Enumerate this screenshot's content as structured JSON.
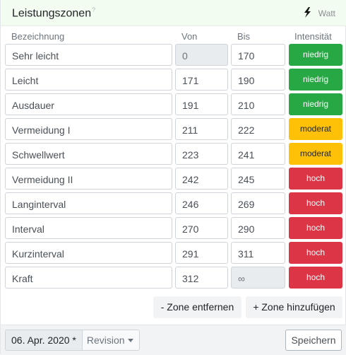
{
  "header": {
    "title": "Leistungszonen",
    "help_mark": "?",
    "unit_icon": "lightning-bolt-icon",
    "unit_label": "Watt"
  },
  "columns": {
    "name": "Bezeichnung",
    "from": "Von",
    "to": "Bis",
    "intensity": "Intensität"
  },
  "colors": {
    "low": "#28a745",
    "moderate": "#ffc107",
    "high": "#dc3545"
  },
  "zones": [
    {
      "name": "Sehr leicht",
      "from": "0",
      "to": "170",
      "intensity": "niedrig",
      "level": "low"
    },
    {
      "name": "Leicht",
      "from": "171",
      "to": "190",
      "intensity": "niedrig",
      "level": "low"
    },
    {
      "name": "Ausdauer",
      "from": "191",
      "to": "210",
      "intensity": "niedrig",
      "level": "low"
    },
    {
      "name": "Vermeidung I",
      "from": "211",
      "to": "222",
      "intensity": "moderat",
      "level": "mid"
    },
    {
      "name": "Schwellwert",
      "from": "223",
      "to": "241",
      "intensity": "moderat",
      "level": "mid"
    },
    {
      "name": "Vermeidung II",
      "from": "242",
      "to": "245",
      "intensity": "hoch",
      "level": "high"
    },
    {
      "name": "Langinterval",
      "from": "246",
      "to": "269",
      "intensity": "hoch",
      "level": "high"
    },
    {
      "name": "Interval",
      "from": "270",
      "to": "290",
      "intensity": "hoch",
      "level": "high"
    },
    {
      "name": "Kurzinterval",
      "from": "291",
      "to": "311",
      "intensity": "hoch",
      "level": "high"
    },
    {
      "name": "Kraft",
      "from": "312",
      "to": "∞",
      "intensity": "hoch",
      "level": "high"
    }
  ],
  "actions": {
    "remove": "- Zone entfernen",
    "add": "+ Zone hinzufügen"
  },
  "footer": {
    "date": "06. Apr. 2020 *",
    "revision": "Revision",
    "save": "Speichern"
  }
}
